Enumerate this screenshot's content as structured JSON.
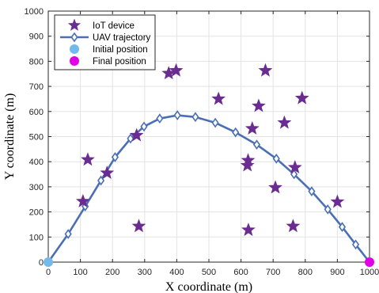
{
  "chart_data": {
    "type": "scatter",
    "xlabel": "X coordinate (m)",
    "ylabel": "Y coordinate (m)",
    "xlim": [
      0,
      1000
    ],
    "ylim": [
      0,
      1000
    ],
    "xticks": [
      0,
      100,
      200,
      300,
      400,
      500,
      600,
      700,
      800,
      900,
      1000
    ],
    "yticks": [
      0,
      100,
      200,
      300,
      400,
      500,
      600,
      700,
      800,
      900,
      1000
    ],
    "grid": true,
    "legend_position": "top-left",
    "legend": [
      {
        "label": "IoT device",
        "marker": "star-icon",
        "color": "#6B2C91"
      },
      {
        "label": "UAV trajectory",
        "marker": "diamond-line",
        "color": "#4A6FB5"
      },
      {
        "label": "Initial position",
        "marker": "circle",
        "color": "#74B9EC"
      },
      {
        "label": "Final position",
        "marker": "circle",
        "color": "#E100E6"
      }
    ],
    "iot_devices": [
      {
        "x": 108,
        "y": 242
      },
      {
        "x": 123,
        "y": 408
      },
      {
        "x": 183,
        "y": 355
      },
      {
        "x": 275,
        "y": 505
      },
      {
        "x": 282,
        "y": 143
      },
      {
        "x": 375,
        "y": 752
      },
      {
        "x": 398,
        "y": 763
      },
      {
        "x": 530,
        "y": 650
      },
      {
        "x": 620,
        "y": 385
      },
      {
        "x": 622,
        "y": 405
      },
      {
        "x": 623,
        "y": 128
      },
      {
        "x": 635,
        "y": 532
      },
      {
        "x": 655,
        "y": 622
      },
      {
        "x": 676,
        "y": 763
      },
      {
        "x": 707,
        "y": 297
      },
      {
        "x": 735,
        "y": 555
      },
      {
        "x": 762,
        "y": 143
      },
      {
        "x": 768,
        "y": 377
      },
      {
        "x": 790,
        "y": 653
      },
      {
        "x": 900,
        "y": 240
      }
    ],
    "uav_trajectory": [
      {
        "x": 0,
        "y": 0
      },
      {
        "x": 62,
        "y": 112
      },
      {
        "x": 115,
        "y": 222
      },
      {
        "x": 164,
        "y": 325
      },
      {
        "x": 208,
        "y": 418
      },
      {
        "x": 256,
        "y": 492
      },
      {
        "x": 298,
        "y": 540
      },
      {
        "x": 347,
        "y": 572
      },
      {
        "x": 402,
        "y": 585
      },
      {
        "x": 458,
        "y": 578
      },
      {
        "x": 520,
        "y": 555
      },
      {
        "x": 583,
        "y": 517
      },
      {
        "x": 649,
        "y": 468
      },
      {
        "x": 710,
        "y": 412
      },
      {
        "x": 765,
        "y": 350
      },
      {
        "x": 820,
        "y": 282
      },
      {
        "x": 870,
        "y": 210
      },
      {
        "x": 915,
        "y": 140
      },
      {
        "x": 957,
        "y": 70
      },
      {
        "x": 1000,
        "y": 0
      }
    ],
    "initial_position": {
      "x": 0,
      "y": 0
    },
    "final_position": {
      "x": 1000,
      "y": 0
    }
  }
}
